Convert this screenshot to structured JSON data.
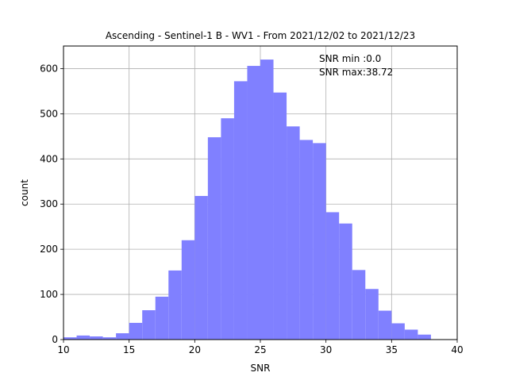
{
  "chart_data": {
    "type": "bar",
    "title": "Ascending - Sentinel-1 B - WV1 - From 2021/12/02 to 2021/12/23",
    "xlabel": "SNR",
    "ylabel": "count",
    "xlim": [
      10,
      40
    ],
    "ylim": [
      0,
      650
    ],
    "xticks": [
      10,
      15,
      20,
      25,
      30,
      35,
      40
    ],
    "yticks": [
      0,
      100,
      200,
      300,
      400,
      500,
      600
    ],
    "grid": true,
    "bar_color": "#8080ff",
    "bin_width": 1.0,
    "bins": [
      {
        "x0": 10.0,
        "count": 5
      },
      {
        "x0": 11.0,
        "count": 9
      },
      {
        "x0": 12.0,
        "count": 7
      },
      {
        "x0": 13.0,
        "count": 5
      },
      {
        "x0": 14.0,
        "count": 14
      },
      {
        "x0": 15.0,
        "count": 37
      },
      {
        "x0": 16.0,
        "count": 65
      },
      {
        "x0": 17.0,
        "count": 95
      },
      {
        "x0": 18.0,
        "count": 153
      },
      {
        "x0": 19.0,
        "count": 220
      },
      {
        "x0": 20.0,
        "count": 318
      },
      {
        "x0": 21.0,
        "count": 448
      },
      {
        "x0": 22.0,
        "count": 490
      },
      {
        "x0": 23.0,
        "count": 572
      },
      {
        "x0": 24.0,
        "count": 606
      },
      {
        "x0": 25.0,
        "count": 620
      },
      {
        "x0": 26.0,
        "count": 547
      },
      {
        "x0": 27.0,
        "count": 472
      },
      {
        "x0": 28.0,
        "count": 442
      },
      {
        "x0": 29.0,
        "count": 435
      },
      {
        "x0": 30.0,
        "count": 282
      },
      {
        "x0": 31.0,
        "count": 257
      },
      {
        "x0": 32.0,
        "count": 154
      },
      {
        "x0": 33.0,
        "count": 112
      },
      {
        "x0": 34.0,
        "count": 64
      },
      {
        "x0": 35.0,
        "count": 36
      },
      {
        "x0": 36.0,
        "count": 22
      },
      {
        "x0": 37.0,
        "count": 11
      }
    ],
    "annotations": [
      "SNR min :0.0",
      "SNR max:38.72"
    ]
  }
}
